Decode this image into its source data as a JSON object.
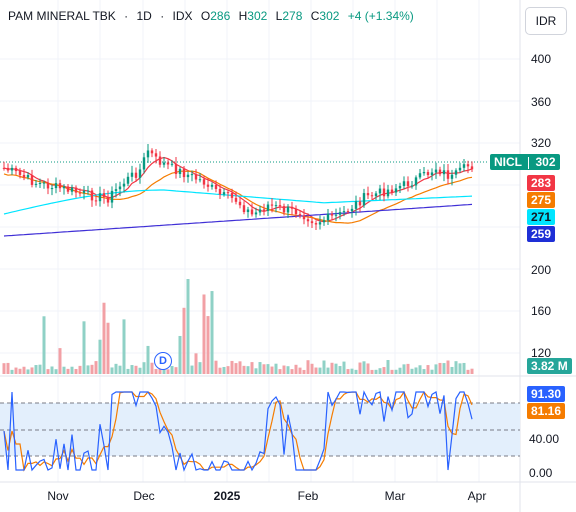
{
  "header": {
    "name": "PAM MINERAL TBK",
    "interval": "1D",
    "exchange": "IDX",
    "open_label": "O",
    "open": "286",
    "high_label": "H",
    "high": "302",
    "low_label": "L",
    "low": "278",
    "close_label": "C",
    "close": "302",
    "change": "+4 (+1.34%)"
  },
  "currency_button": "IDR",
  "price_axis": [
    "400",
    "360",
    "320",
    "200",
    "160",
    "120"
  ],
  "oscillator_axis": [
    "40.00",
    "0.00"
  ],
  "time_axis": [
    {
      "label": "Nov",
      "bold": false
    },
    {
      "label": "Dec",
      "bold": false
    },
    {
      "label": "2025",
      "bold": true
    },
    {
      "label": "Feb",
      "bold": false
    },
    {
      "label": "Mar",
      "bold": false
    },
    {
      "label": "Apr",
      "bold": false
    }
  ],
  "symbol_tag": {
    "ticker": "NICL",
    "price": "302"
  },
  "ma_badges": [
    {
      "value": "283",
      "color": "#f23645",
      "text_color": "#ffffff"
    },
    {
      "value": "275",
      "color": "#f57c00",
      "text_color": "#ffffff"
    },
    {
      "value": "271",
      "color": "#00e5ff",
      "text_color": "#131722"
    },
    {
      "value": "259",
      "color": "#1e2fd6",
      "text_color": "#ffffff"
    }
  ],
  "volume_badge": {
    "value": "3.82 M",
    "color": "#26a69a"
  },
  "oscillator_badges": [
    {
      "value": "91.30",
      "color": "#2962ff"
    },
    {
      "value": "81.16",
      "color": "#f57c00"
    }
  ],
  "dividend_marker": "D",
  "colors": {
    "up": "#089981",
    "down": "#f23645",
    "ma_fast": "#f23645",
    "ma_mid": "#f57c00",
    "ma_slow": "#00e5ff",
    "ma_long": "#3f2fd6",
    "vol_up": "#8fd1c6",
    "vol_down": "#f2a0a5",
    "osc_k": "#2962ff",
    "osc_d": "#f57c00",
    "osc_band": "#e3effc"
  }
}
